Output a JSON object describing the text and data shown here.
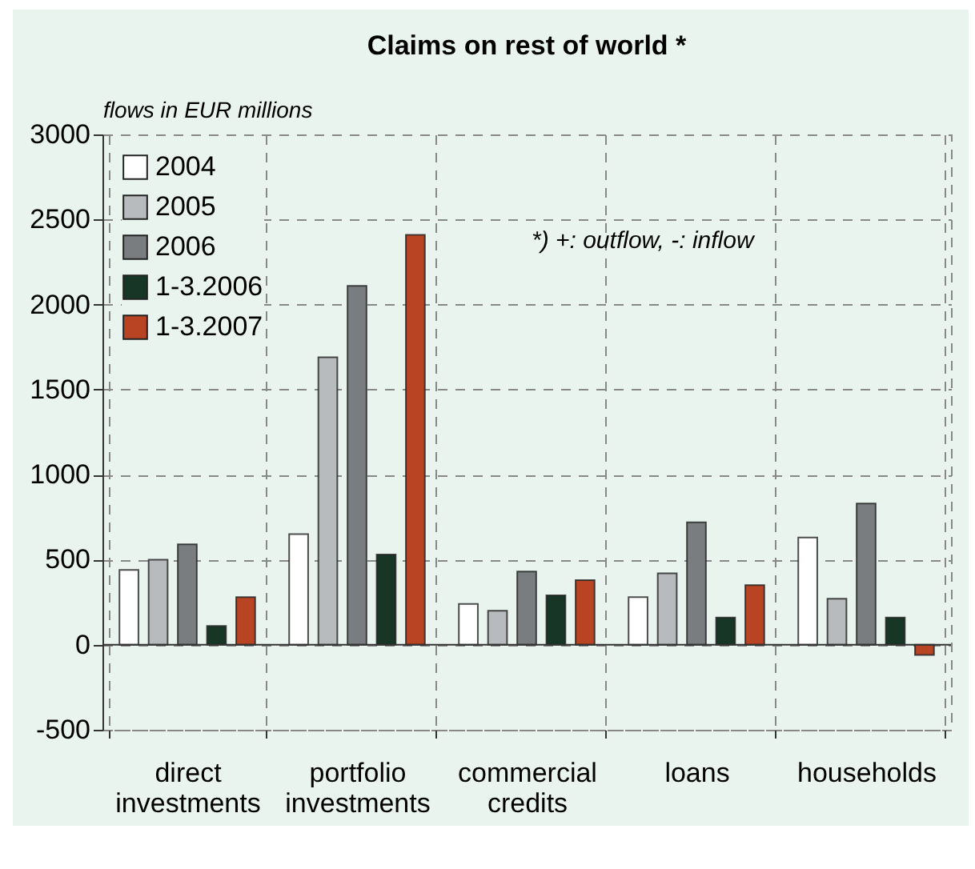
{
  "chart_data": {
    "type": "bar",
    "title": "Claims on rest of world *",
    "ylabel": "flows in EUR millions",
    "annotations": [
      "*) +: outflow, -: inflow"
    ],
    "categories": [
      "direct investments",
      "portfolio investments",
      "commercial credits",
      "loans",
      "households"
    ],
    "series": [
      {
        "name": "2004",
        "color": "#ffffff",
        "values": [
          440,
          650,
          240,
          280,
          630
        ]
      },
      {
        "name": "2005",
        "color": "#b8bbbd",
        "values": [
          500,
          1690,
          200,
          420,
          270
        ]
      },
      {
        "name": "2006",
        "color": "#7a7d80",
        "values": [
          590,
          2110,
          430,
          720,
          830
        ]
      },
      {
        "name": "1-3.2006",
        "color": "#173626",
        "values": [
          110,
          530,
          290,
          160,
          160
        ]
      },
      {
        "name": "1-3.2007",
        "color": "#b84424",
        "values": [
          280,
          2410,
          380,
          350,
          -60
        ]
      }
    ],
    "ylim": [
      -500,
      3000
    ],
    "yticks": [
      -500,
      0,
      500,
      1000,
      1500,
      2000,
      2500,
      3000
    ],
    "grid": true,
    "legend": "top left"
  }
}
